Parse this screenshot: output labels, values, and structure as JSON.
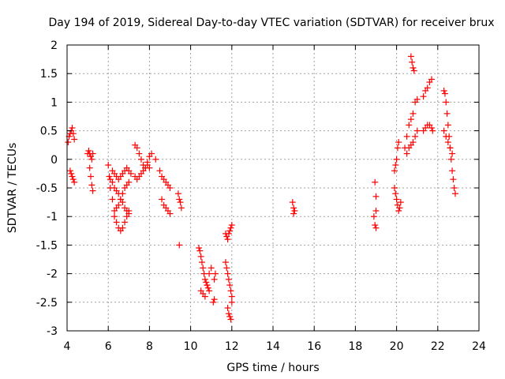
{
  "chart_data": {
    "type": "scatter",
    "title": "Day 194 of 2019, Sidereal Day-to-day VTEC variation (SDTVAR) for receiver brux",
    "xlabel": "GPS time / hours",
    "ylabel": "SDTVAR / TECUs",
    "xlim": [
      4,
      24
    ],
    "ylim": [
      -3,
      2
    ],
    "xticks": [
      "4",
      "6",
      "8",
      "10",
      "12",
      "14",
      "16",
      "18",
      "20",
      "22",
      "24"
    ],
    "yticks": [
      "2",
      "1.5",
      "1",
      "0.5",
      "0",
      "-0.5",
      "-1",
      "-1.5",
      "-2",
      "-2.5",
      "-3"
    ],
    "grid": true,
    "marker": "+",
    "color": "#ff0000",
    "series": [
      {
        "name": "SDTVAR",
        "x": [
          4.05,
          4.1,
          4.15,
          4.2,
          4.25,
          4.3,
          4.35,
          4.15,
          4.2,
          4.25,
          4.3,
          4.35,
          5.0,
          5.05,
          5.1,
          5.15,
          5.2,
          5.25,
          5.1,
          5.15,
          5.2,
          5.25,
          6.0,
          6.05,
          6.1,
          6.2,
          6.3,
          6.4,
          6.5,
          6.6,
          6.7,
          6.8,
          6.9,
          7.0,
          6.1,
          6.2,
          6.3,
          6.4,
          6.5,
          6.6,
          6.7,
          6.8,
          6.9,
          7.0,
          6.2,
          6.3,
          6.4,
          6.5,
          6.6,
          6.7,
          6.8,
          6.9,
          7.0,
          7.1,
          6.3,
          6.4,
          6.5,
          6.6,
          6.7,
          6.8,
          6.9,
          7.0,
          7.3,
          7.4,
          7.5,
          7.6,
          7.7,
          7.8,
          7.9,
          8.0,
          8.1,
          7.3,
          7.4,
          7.5,
          7.6,
          7.7,
          7.8,
          7.9,
          8.0,
          8.3,
          8.5,
          8.6,
          8.7,
          8.8,
          8.9,
          9.0,
          8.6,
          8.7,
          8.8,
          8.9,
          9.0,
          9.4,
          9.45,
          9.5,
          9.55,
          9.45,
          10.4,
          10.45,
          10.5,
          10.55,
          10.6,
          10.65,
          10.7,
          10.75,
          10.8,
          10.85,
          10.9,
          10.5,
          10.6,
          10.7,
          10.8,
          10.9,
          11.0,
          11.1,
          11.15,
          11.2,
          11.15,
          11.7,
          11.75,
          11.8,
          11.85,
          11.9,
          11.95,
          12.0,
          11.7,
          11.75,
          11.8,
          11.85,
          11.9,
          11.95,
          12.0,
          11.8,
          11.85,
          11.9,
          11.95,
          12.0,
          14.95,
          15.0,
          15.05,
          15.0,
          18.95,
          19.0,
          19.0,
          18.9,
          18.95,
          19.0,
          19.9,
          19.95,
          20.0,
          20.05,
          20.1,
          20.15,
          20.2,
          19.9,
          19.95,
          20.0,
          20.05,
          20.1,
          20.4,
          20.5,
          20.6,
          20.7,
          20.8,
          20.9,
          21.0,
          20.5,
          20.6,
          20.7,
          20.8,
          20.9,
          21.0,
          20.7,
          20.75,
          20.8,
          20.85,
          21.3,
          21.4,
          21.5,
          21.6,
          21.7,
          21.75,
          21.3,
          21.4,
          21.5,
          21.6,
          21.7,
          22.3,
          22.35,
          22.4,
          22.45,
          22.5,
          22.55,
          22.6,
          22.65,
          22.7,
          22.75,
          22.8,
          22.85,
          22.3,
          22.4,
          22.5,
          22.6,
          22.7
        ],
        "y": [
          0.3,
          0.4,
          0.45,
          0.5,
          0.55,
          0.45,
          0.35,
          -0.2,
          -0.25,
          -0.3,
          -0.35,
          -0.4,
          0.1,
          0.15,
          0.1,
          0.05,
          0.0,
          0.1,
          -0.15,
          -0.3,
          -0.45,
          -0.55,
          -0.1,
          -0.3,
          -0.5,
          -0.7,
          -0.9,
          -0.85,
          -0.8,
          -0.7,
          -0.6,
          -0.5,
          -0.45,
          -0.4,
          -0.35,
          -0.4,
          -0.5,
          -0.55,
          -0.6,
          -0.7,
          -0.75,
          -0.85,
          -0.9,
          -0.95,
          -0.2,
          -0.25,
          -0.3,
          -0.35,
          -0.3,
          -0.25,
          -0.2,
          -0.15,
          -0.2,
          -0.25,
          -1.0,
          -1.1,
          -1.2,
          -1.25,
          -1.2,
          -1.1,
          -1.0,
          -0.9,
          0.25,
          0.2,
          0.1,
          0.0,
          -0.1,
          -0.15,
          -0.05,
          0.05,
          0.1,
          -0.3,
          -0.35,
          -0.3,
          -0.25,
          -0.2,
          -0.15,
          -0.1,
          -0.15,
          0.0,
          -0.2,
          -0.3,
          -0.35,
          -0.4,
          -0.45,
          -0.5,
          -0.7,
          -0.8,
          -0.85,
          -0.9,
          -0.95,
          -0.6,
          -0.7,
          -0.75,
          -0.85,
          -1.5,
          -1.55,
          -1.6,
          -1.7,
          -1.8,
          -1.9,
          -2.0,
          -2.1,
          -2.15,
          -2.2,
          -2.25,
          -2.3,
          -2.3,
          -2.35,
          -2.4,
          -2.2,
          -2.0,
          -1.9,
          -2.5,
          -2.45,
          -2.0,
          -2.1,
          -1.3,
          -1.35,
          -1.4,
          -1.3,
          -1.25,
          -1.2,
          -1.15,
          -1.8,
          -1.9,
          -2.0,
          -2.1,
          -2.2,
          -2.3,
          -2.4,
          -2.6,
          -2.7,
          -2.75,
          -2.8,
          -2.5,
          -0.75,
          -0.85,
          -0.9,
          -0.95,
          -0.4,
          -0.65,
          -0.9,
          -1.0,
          -1.15,
          -1.2,
          -0.5,
          -0.6,
          -0.7,
          -0.8,
          -0.9,
          -0.85,
          -0.75,
          -0.2,
          -0.1,
          0.0,
          0.2,
          0.3,
          0.2,
          0.4,
          0.6,
          0.7,
          0.8,
          1.0,
          1.05,
          0.1,
          0.2,
          0.25,
          0.3,
          0.4,
          0.5,
          1.8,
          1.7,
          1.6,
          1.55,
          0.5,
          0.55,
          0.6,
          0.6,
          0.55,
          0.5,
          1.1,
          1.2,
          1.25,
          1.35,
          1.4,
          1.2,
          1.15,
          1.0,
          0.8,
          0.6,
          0.4,
          0.2,
          0.0,
          -0.2,
          -0.35,
          -0.5,
          -0.6,
          0.5,
          0.4,
          0.3,
          0.2,
          0.1
        ]
      }
    ]
  }
}
